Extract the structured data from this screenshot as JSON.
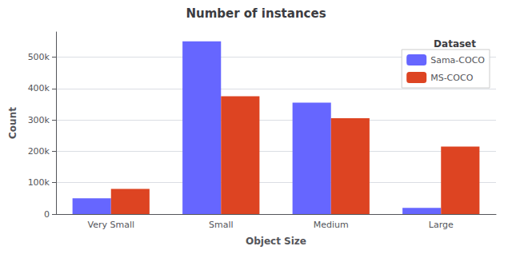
{
  "chart_data": {
    "type": "bar",
    "title": "Number of instances",
    "xlabel": "Object Size",
    "ylabel": "Count",
    "categories": [
      "Very Small",
      "Small",
      "Medium",
      "Large"
    ],
    "series": [
      {
        "name": "Sama-COCO",
        "color": "#6666ff",
        "values": [
          50000,
          550000,
          355000,
          20000
        ]
      },
      {
        "name": "MS-COCO",
        "color": "#dd4422",
        "values": [
          80000,
          375000,
          305000,
          215000
        ]
      }
    ],
    "legend_title": "Dataset",
    "legend": "upper right",
    "grid": true,
    "ylim": [
      0,
      580000
    ],
    "yticks": [
      0,
      {
        "value": 100000,
        "label": "100k"
      },
      {
        "value": 200000,
        "label": "200k"
      },
      {
        "value": 300000,
        "label": "300k"
      },
      {
        "value": 400000,
        "label": "400k"
      },
      {
        "value": 500000,
        "label": "500k"
      }
    ]
  }
}
